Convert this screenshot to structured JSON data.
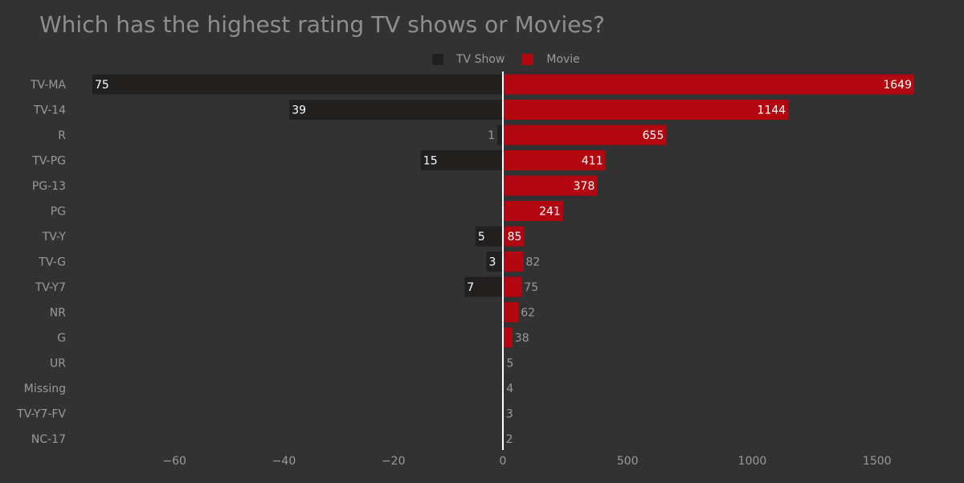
{
  "chart_data": {
    "type": "bar",
    "orientation": "horizontal",
    "title": "Which has the highest rating TV shows or Movies?",
    "categories": [
      "TV-MA",
      "TV-14",
      "R",
      "TV-PG",
      "PG-13",
      "PG",
      "TV-Y",
      "TV-G",
      "TV-Y7",
      "NR",
      "G",
      "UR",
      "Missing",
      "TV-Y7-FV",
      "NC-17"
    ],
    "series": [
      {
        "name": "TV Show",
        "color": "#221f1f",
        "values": [
          75,
          39,
          1,
          15,
          null,
          null,
          5,
          3,
          7,
          null,
          null,
          null,
          null,
          null,
          null
        ]
      },
      {
        "name": "Movie",
        "color": "#b20710",
        "values": [
          1649,
          1144,
          655,
          411,
          378,
          241,
          85,
          82,
          75,
          62,
          38,
          5,
          4,
          3,
          2
        ]
      }
    ],
    "left_axis": {
      "range": [
        -75,
        0
      ],
      "ticks": [
        -60,
        -40,
        -20,
        0
      ],
      "tick_labels": [
        "−60",
        "−40",
        "−20",
        "0"
      ]
    },
    "right_axis": {
      "range": [
        0,
        1649
      ],
      "ticks": [
        500,
        1000,
        1500
      ],
      "tick_labels": [
        "500",
        "1000",
        "1500"
      ]
    },
    "legend_position": "top-center",
    "xlabel": "",
    "ylabel": ""
  }
}
